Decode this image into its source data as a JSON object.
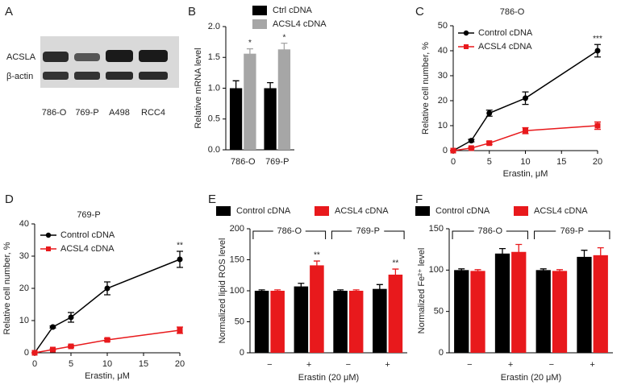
{
  "blot": {
    "panel": "A",
    "rows": [
      "ACSLA",
      "β-actin"
    ],
    "lanes": [
      "786-O",
      "769-P",
      "A498",
      "RCC4"
    ]
  },
  "chart_data": [
    {
      "type": "bar",
      "panel": "B",
      "ylabel": "Relative mRNA level",
      "categories": [
        "786-O",
        "769-P"
      ],
      "series": [
        {
          "name": "Ctrl cDNA",
          "color": "#000000",
          "values": [
            1.0,
            1.0
          ],
          "errors": [
            0.12,
            0.09
          ]
        },
        {
          "name": "ACSL4 cDNA",
          "color": "#a6a6a6",
          "values": [
            1.56,
            1.63
          ],
          "errors": [
            0.08,
            0.1
          ]
        }
      ],
      "ylim": [
        0,
        2
      ],
      "yticks": [
        {
          "value": 0,
          "label": "0.0"
        },
        {
          "value": 0.5,
          "label": "0.5"
        },
        {
          "value": 1,
          "label": "1.0"
        },
        {
          "value": 1.5,
          "label": "1.5"
        },
        {
          "value": 2,
          "label": "2.0"
        }
      ],
      "annotations": [
        {
          "text": "*",
          "series": 1,
          "index": 0
        },
        {
          "text": "*",
          "series": 1,
          "index": 1
        }
      ],
      "legend": "top"
    },
    {
      "type": "line",
      "panel": "C",
      "title": "786-O",
      "xlabel": "Erastin, μM",
      "ylabel": "Relative cell number, %",
      "x": [
        0,
        2.5,
        5,
        10,
        20
      ],
      "series": [
        {
          "name": "Control cDNA",
          "color": "#000000",
          "marker": "circle",
          "values": [
            0,
            4,
            15,
            21,
            40
          ],
          "errors": [
            0,
            0.5,
            1.2,
            2.5,
            2.5
          ]
        },
        {
          "name": "ACSL4 cDNA",
          "color": "#e8191c",
          "marker": "square",
          "values": [
            0,
            1,
            3,
            8,
            10
          ],
          "errors": [
            0,
            0.3,
            0.5,
            1.2,
            1.5
          ]
        }
      ],
      "xlim": [
        0,
        20
      ],
      "xticks": [
        0,
        5,
        10,
        15,
        20
      ],
      "ylim": [
        0,
        50
      ],
      "yticks": [
        0,
        10,
        20,
        30,
        40,
        50
      ],
      "annotations": [
        {
          "text": "***",
          "series": 0,
          "index": 4
        }
      ],
      "legend": "upper left"
    },
    {
      "type": "line",
      "panel": "D",
      "title": "769-P",
      "xlabel": "Erastin, μM",
      "ylabel": "Relative cell number, %",
      "x": [
        0,
        2.5,
        5,
        10,
        20
      ],
      "series": [
        {
          "name": "Control cDNA",
          "color": "#000000",
          "marker": "circle",
          "values": [
            0,
            8,
            11,
            20,
            29
          ],
          "errors": [
            0,
            0.3,
            1.5,
            2,
            2.5
          ]
        },
        {
          "name": "ACSL4 cDNA",
          "color": "#e8191c",
          "marker": "square",
          "values": [
            0,
            1,
            2,
            4,
            7
          ],
          "errors": [
            0,
            0.2,
            0.3,
            0.4,
            1
          ]
        }
      ],
      "xlim": [
        0,
        20
      ],
      "xticks": [
        0,
        5,
        10,
        15,
        20
      ],
      "ylim": [
        0,
        40
      ],
      "yticks": [
        0,
        10,
        20,
        30,
        40
      ],
      "annotations": [
        {
          "text": "**",
          "series": 0,
          "index": 4
        }
      ],
      "legend": "upper left"
    },
    {
      "type": "bar",
      "panel": "E",
      "xlabel": "Erastin (20 μM)",
      "ylabel": "Normalized lipid ROS level",
      "categories": [
        "−",
        "+",
        "−",
        "+"
      ],
      "groups": [
        {
          "label": "786-O",
          "categories": [
            0,
            1
          ]
        },
        {
          "label": "769-P",
          "categories": [
            2,
            3
          ]
        }
      ],
      "series": [
        {
          "name": "Control cDNA",
          "color": "#000000",
          "values": [
            100,
            107,
            100,
            103
          ],
          "errors": [
            1.5,
            5,
            1.5,
            7
          ]
        },
        {
          "name": "ACSL4 cDNA",
          "color": "#e8191c",
          "values": [
            100,
            141,
            100,
            126
          ],
          "errors": [
            1.5,
            7,
            1.5,
            9
          ]
        }
      ],
      "ylim": [
        0,
        200
      ],
      "yticks": [
        0,
        50,
        100,
        150,
        200
      ],
      "annotations": [
        {
          "text": "**",
          "series": 1,
          "index": 1
        },
        {
          "text": "**",
          "series": 1,
          "index": 3
        }
      ],
      "legend": "top"
    },
    {
      "type": "bar",
      "panel": "F",
      "xlabel": "Erastin (20 μM)",
      "ylabel": "Normalized Fe²⁺ level",
      "categories": [
        "−",
        "+",
        "−",
        "+"
      ],
      "groups": [
        {
          "label": "786-O",
          "categories": [
            0,
            1
          ]
        },
        {
          "label": "769-P",
          "categories": [
            2,
            3
          ]
        }
      ],
      "series": [
        {
          "name": "Control cDNA",
          "color": "#000000",
          "values": [
            100,
            120,
            100,
            116
          ],
          "errors": [
            1.5,
            6,
            1.5,
            8
          ]
        },
        {
          "name": "ACSL4 cDNA",
          "color": "#e8191c",
          "values": [
            99,
            122,
            99,
            118
          ],
          "errors": [
            1.5,
            9,
            1.5,
            9
          ]
        }
      ],
      "ylim": [
        0,
        150
      ],
      "yticks": [
        0,
        50,
        100,
        150
      ],
      "legend": "top"
    }
  ]
}
